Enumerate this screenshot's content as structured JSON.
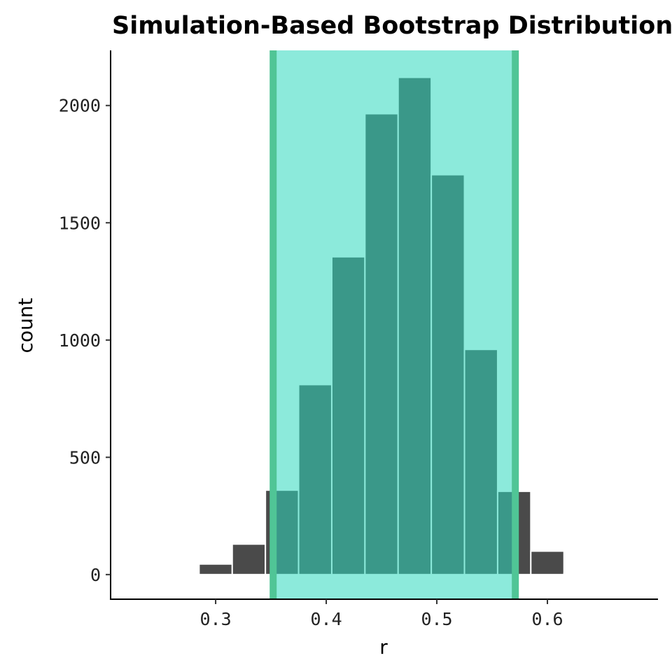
{
  "chart_data": {
    "type": "bar",
    "title": "Simulation-Based Bootstrap Distribution",
    "xlabel": "r",
    "ylabel": "count",
    "xlim": [
      0.205,
      0.7
    ],
    "ylim": [
      -105,
      2235
    ],
    "x_ticks": [
      0.3,
      0.4,
      0.5,
      0.6
    ],
    "x_tick_labels": [
      "0.3",
      "0.4",
      "0.5",
      "0.6"
    ],
    "y_ticks": [
      0,
      500,
      1000,
      1500,
      2000
    ],
    "y_tick_labels": [
      "0",
      "500",
      "1000",
      "1500",
      "2000"
    ],
    "bin_width": 0.03,
    "bins": [
      {
        "center": 0.3,
        "count": 45
      },
      {
        "center": 0.33,
        "count": 130
      },
      {
        "center": 0.36,
        "count": 360
      },
      {
        "center": 0.39,
        "count": 810
      },
      {
        "center": 0.42,
        "count": 1355
      },
      {
        "center": 0.45,
        "count": 1965
      },
      {
        "center": 0.48,
        "count": 2120
      },
      {
        "center": 0.51,
        "count": 1705
      },
      {
        "center": 0.54,
        "count": 960
      },
      {
        "center": 0.57,
        "count": 355
      },
      {
        "center": 0.6,
        "count": 100
      },
      {
        "center": 0.63,
        "count": 5
      }
    ],
    "confidence_interval": {
      "lower": 0.352,
      "upper": 0.571
    },
    "grid": false,
    "colors": {
      "bar_fill": "#4a4a4a",
      "bar_edge": "#ffffff",
      "ci_shade": "#2ed8bd",
      "ci_shade_opacity": 0.55,
      "ci_line": "#50c596"
    }
  }
}
